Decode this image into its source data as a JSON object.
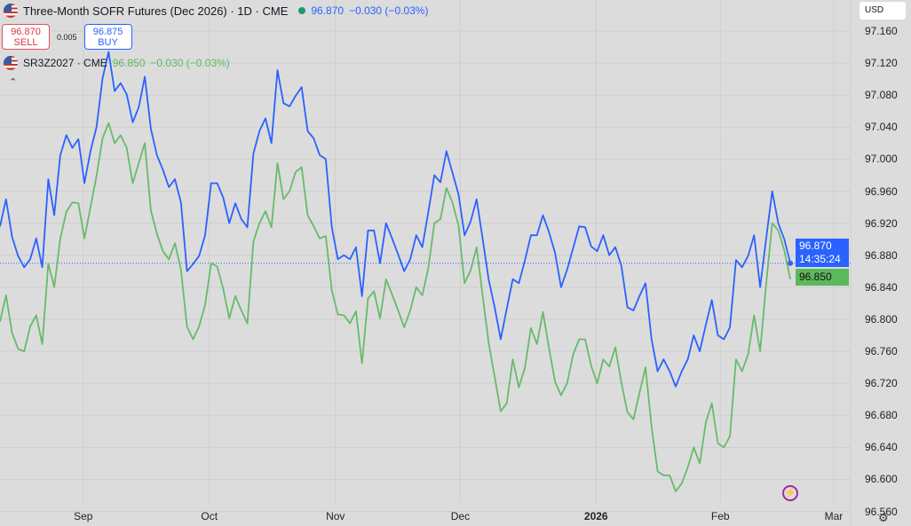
{
  "header": {
    "title": "Three-Month SOFR Futures (Dec 2026) · 1D · CME",
    "last": "96.870",
    "change": "−0.030 (−0.03%)",
    "sell_price": "96.870",
    "sell_label": "SELL",
    "spread": "0.005",
    "buy_price": "96.875",
    "buy_label": "BUY"
  },
  "compare": {
    "title": "SR3Z2027 · CME",
    "last": "96.850",
    "change": "−0.030 (−0.03%)"
  },
  "currency": "USD",
  "price_labels": {
    "main": "96.870",
    "countdown": "14:35:24",
    "compare": "96.850"
  },
  "colors": {
    "main": "#2962ff",
    "compare": "#66bb6a",
    "background": "#dcdcdc",
    "grid": "#cecece"
  },
  "icons": {
    "flag": "us-flag-icon",
    "collapse": "chevron-up-icon",
    "bolt": "lightning-icon",
    "settings": "gear-icon"
  },
  "chart_data": {
    "type": "line",
    "title": "Three-Month SOFR Futures (Dec 2026) · 1D · CME",
    "x_unit": "trading-day index",
    "xlim": [
      0,
      141
    ],
    "ylim": [
      96.5706,
      97.1988
    ],
    "grid": true,
    "y_ticks": [
      "97.160",
      "97.120",
      "97.080",
      "97.040",
      "97.000",
      "96.960",
      "96.920",
      "96.880",
      "96.840",
      "96.800",
      "96.760",
      "96.720",
      "96.680",
      "96.640",
      "96.600",
      "96.560"
    ],
    "x_ticks": [
      {
        "label": "Sep",
        "x": 13.8,
        "bold": false
      },
      {
        "label": "Oct",
        "x": 34.7,
        "bold": false
      },
      {
        "label": "Nov",
        "x": 55.6,
        "bold": false
      },
      {
        "label": "Dec",
        "x": 76.3,
        "bold": false
      },
      {
        "label": "2026",
        "x": 98.8,
        "bold": true
      },
      {
        "label": "Feb",
        "x": 119.4,
        "bold": false
      },
      {
        "label": "Mar",
        "x": 138.2,
        "bold": false
      }
    ],
    "series": [
      {
        "name": "Three-Month SOFR Futures (Dec 2026)",
        "color": "#2962ff",
        "values": [
          96.916,
          96.95,
          96.903,
          96.879,
          96.865,
          96.875,
          96.901,
          96.865,
          96.975,
          96.93,
          97.005,
          97.03,
          97.014,
          97.025,
          96.97,
          97.01,
          97.04,
          97.101,
          97.134,
          97.085,
          97.095,
          97.081,
          97.046,
          97.065,
          97.103,
          97.038,
          97.005,
          96.987,
          96.965,
          96.975,
          96.946,
          96.86,
          96.869,
          96.879,
          96.905,
          96.97,
          96.97,
          96.952,
          96.92,
          96.945,
          96.925,
          96.915,
          97.007,
          97.035,
          97.051,
          97.02,
          97.111,
          97.07,
          97.066,
          97.079,
          97.09,
          97.035,
          97.026,
          97.005,
          97.0,
          96.915,
          96.875,
          96.88,
          96.875,
          96.89,
          96.829,
          96.911,
          96.911,
          96.87,
          96.92,
          96.901,
          96.881,
          96.86,
          96.875,
          96.905,
          96.89,
          96.934,
          96.98,
          96.971,
          97.01,
          96.983,
          96.956,
          96.905,
          96.922,
          96.95,
          96.901,
          96.85,
          96.815,
          96.775,
          96.813,
          96.85,
          96.845,
          96.873,
          96.905,
          96.905,
          96.93,
          96.909,
          96.883,
          96.84,
          96.862,
          96.889,
          96.916,
          96.915,
          96.891,
          96.885,
          96.905,
          96.88,
          96.89,
          96.867,
          96.815,
          96.811,
          96.829,
          96.845,
          96.775,
          96.735,
          96.75,
          96.735,
          96.716,
          96.735,
          96.75,
          96.78,
          96.76,
          96.793,
          96.824,
          96.78,
          96.775,
          96.79,
          96.874,
          96.865,
          96.879,
          96.905,
          96.84,
          96.901,
          96.96,
          96.92,
          96.9,
          96.87
        ]
      },
      {
        "name": "SR3Z2027 · CME",
        "color": "#66bb6a",
        "values": [
          96.797,
          96.83,
          96.783,
          96.763,
          96.76,
          96.791,
          96.805,
          96.769,
          96.87,
          96.84,
          96.901,
          96.934,
          96.946,
          96.945,
          96.901,
          96.94,
          96.979,
          97.026,
          97.045,
          97.02,
          97.03,
          97.014,
          96.97,
          96.995,
          97.02,
          96.936,
          96.907,
          96.885,
          96.875,
          96.895,
          96.862,
          96.791,
          96.775,
          96.791,
          96.818,
          96.87,
          96.866,
          96.838,
          96.801,
          96.829,
          96.811,
          96.795,
          96.897,
          96.92,
          96.935,
          96.915,
          96.995,
          96.95,
          96.96,
          96.984,
          96.99,
          96.93,
          96.916,
          96.901,
          96.904,
          96.836,
          96.806,
          96.805,
          96.795,
          96.81,
          96.745,
          96.826,
          96.835,
          96.801,
          96.85,
          96.831,
          96.811,
          96.79,
          96.811,
          96.84,
          96.83,
          96.864,
          96.92,
          96.925,
          96.964,
          96.946,
          96.917,
          96.845,
          96.861,
          96.89,
          96.83,
          96.771,
          96.728,
          96.685,
          96.695,
          96.75,
          96.715,
          96.739,
          96.789,
          96.769,
          96.809,
          96.764,
          96.722,
          96.705,
          96.72,
          96.756,
          96.775,
          96.775,
          96.742,
          96.72,
          96.75,
          96.741,
          96.765,
          96.721,
          96.684,
          96.675,
          96.708,
          96.74,
          96.666,
          96.61,
          96.605,
          96.605,
          96.585,
          96.595,
          96.615,
          96.64,
          96.62,
          96.671,
          96.695,
          96.645,
          96.64,
          96.654,
          96.75,
          96.735,
          96.756,
          96.805,
          96.76,
          96.844,
          96.92,
          96.911,
          96.886,
          96.85
        ]
      }
    ],
    "reference_line": 96.87,
    "legend": "top-left"
  }
}
